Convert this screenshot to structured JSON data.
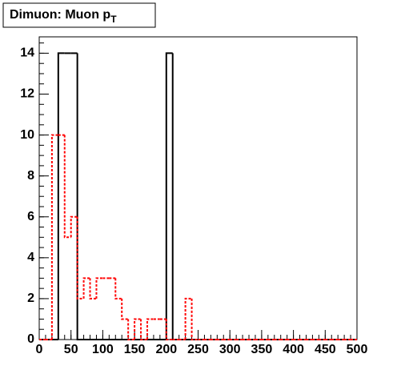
{
  "chart_data": {
    "type": "histogram",
    "title": "Dimuon: Muon p",
    "title_subscript": "T",
    "bins": [
      0,
      10,
      20,
      30,
      40,
      50,
      60,
      70,
      80,
      90,
      100,
      110,
      120,
      130,
      140,
      150,
      160,
      170,
      180,
      190,
      200,
      210,
      220,
      230,
      240,
      250,
      260,
      270,
      280,
      290,
      300,
      310,
      320,
      330,
      340,
      350,
      360,
      370,
      380,
      390,
      400,
      410,
      420,
      430,
      440,
      450,
      460,
      470,
      480,
      490,
      500
    ],
    "series": [
      {
        "color": "#000000",
        "dashed": false,
        "values": [
          0,
          0,
          0,
          14,
          14,
          14,
          0,
          0,
          0,
          0,
          0,
          0,
          0,
          0,
          0,
          0,
          0,
          0,
          0,
          0,
          14,
          0,
          0,
          0,
          0,
          0,
          0,
          0,
          0,
          0,
          0,
          0,
          0,
          0,
          0,
          0,
          0,
          0,
          0,
          0,
          0,
          0,
          0,
          0,
          0,
          0,
          0,
          0,
          0,
          0
        ]
      },
      {
        "color": "#ff0000",
        "dashed": true,
        "values": [
          0,
          0,
          10,
          10,
          5,
          6,
          2,
          3,
          2,
          3,
          3,
          3,
          2,
          1,
          0,
          1,
          0,
          1,
          1,
          1,
          0,
          0,
          0,
          2,
          0,
          0,
          0,
          0,
          0,
          0,
          0,
          0,
          0,
          0,
          0,
          0,
          0,
          0,
          0,
          0,
          0,
          0,
          0,
          0,
          0,
          0,
          0,
          0,
          0,
          0
        ]
      }
    ],
    "xlim": [
      0,
      500
    ],
    "xticks": [
      0,
      50,
      100,
      150,
      200,
      250,
      300,
      350,
      400,
      450,
      500
    ],
    "ylim": [
      0,
      14.8
    ],
    "yticks": [
      0,
      2,
      4,
      6,
      8,
      10,
      12,
      14
    ]
  }
}
